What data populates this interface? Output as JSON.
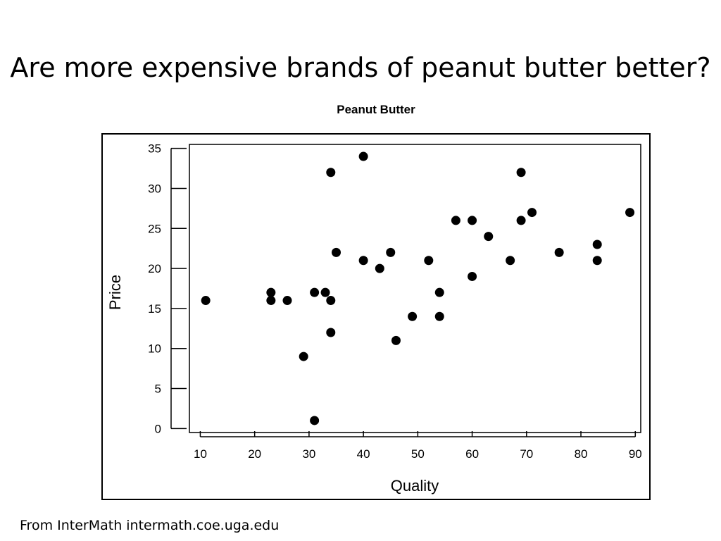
{
  "slide": {
    "title": "Are more expensive brands of peanut butter better?",
    "source": "From InterMath intermath.coe.uga.edu"
  },
  "chart_data": {
    "type": "scatter",
    "title": "Peanut Butter",
    "xlabel": "Quality",
    "ylabel": "Price",
    "xlim": [
      8,
      91
    ],
    "ylim": [
      -0.5,
      35.5
    ],
    "xticks": [
      10,
      20,
      30,
      40,
      50,
      60,
      70,
      80,
      90
    ],
    "yticks": [
      0,
      5,
      10,
      15,
      20,
      25,
      30,
      35
    ],
    "grid": false,
    "legend": "none",
    "marker_color": "#000000",
    "points": [
      {
        "x": 11,
        "y": 16
      },
      {
        "x": 23,
        "y": 17
      },
      {
        "x": 23,
        "y": 16
      },
      {
        "x": 26,
        "y": 16
      },
      {
        "x": 29,
        "y": 9
      },
      {
        "x": 31,
        "y": 17
      },
      {
        "x": 31,
        "y": 1
      },
      {
        "x": 33,
        "y": 17
      },
      {
        "x": 34,
        "y": 16
      },
      {
        "x": 34,
        "y": 12
      },
      {
        "x": 34,
        "y": 32
      },
      {
        "x": 35,
        "y": 22
      },
      {
        "x": 40,
        "y": 34
      },
      {
        "x": 40,
        "y": 21
      },
      {
        "x": 43,
        "y": 20
      },
      {
        "x": 45,
        "y": 22
      },
      {
        "x": 46,
        "y": 11
      },
      {
        "x": 49,
        "y": 14
      },
      {
        "x": 52,
        "y": 21
      },
      {
        "x": 54,
        "y": 17
      },
      {
        "x": 54,
        "y": 14
      },
      {
        "x": 57,
        "y": 26
      },
      {
        "x": 60,
        "y": 26
      },
      {
        "x": 60,
        "y": 19
      },
      {
        "x": 63,
        "y": 24
      },
      {
        "x": 67,
        "y": 21
      },
      {
        "x": 69,
        "y": 32
      },
      {
        "x": 69,
        "y": 26
      },
      {
        "x": 71,
        "y": 27
      },
      {
        "x": 76,
        "y": 22
      },
      {
        "x": 83,
        "y": 23
      },
      {
        "x": 83,
        "y": 21
      },
      {
        "x": 89,
        "y": 27
      }
    ]
  }
}
